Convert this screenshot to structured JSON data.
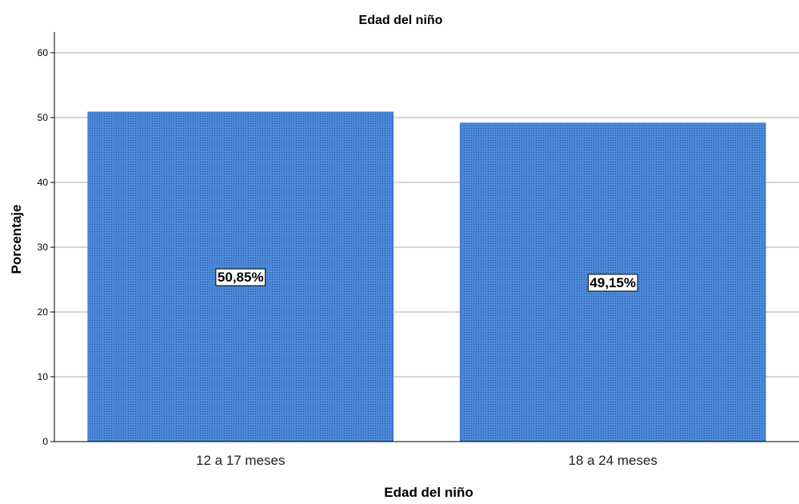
{
  "chart_data": {
    "type": "bar",
    "title": "Edad del niño",
    "xlabel": "Edad del niño",
    "ylabel": "Porcentaje",
    "categories": [
      "12 a 17 meses",
      "18 a 24 meses"
    ],
    "values": [
      50.85,
      49.15
    ],
    "data_labels": [
      "50,85%",
      "49,15%"
    ],
    "ylim": [
      0,
      60
    ],
    "yticks": [
      0,
      10,
      20,
      30,
      40,
      50,
      60
    ],
    "grid": true,
    "colors": {
      "bar_fill": "#4d8ad9",
      "bar_dots": "#1f4f9a",
      "gridline": "#c8c8c8",
      "axis": "#000000"
    }
  }
}
